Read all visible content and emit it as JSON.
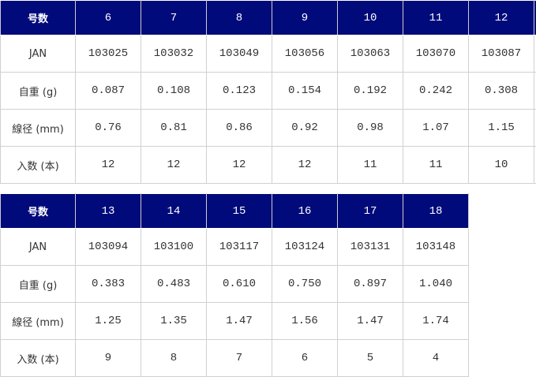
{
  "colors": {
    "header_bg": "#000a7a",
    "header_text": "#ffffff",
    "border": "#d0d0d0"
  },
  "row_labels": {
    "size": "号数",
    "jan": "JAN",
    "weight": "自重 (g)",
    "diameter": "線径 (mm)",
    "quantity": "入数 (本)"
  },
  "tables": [
    {
      "sizes": [
        "6",
        "7",
        "8",
        "9",
        "10",
        "11",
        "12"
      ],
      "jan": [
        "103025",
        "103032",
        "103049",
        "103056",
        "103063",
        "103070",
        "103087"
      ],
      "weight": [
        "0.087",
        "0.108",
        "0.123",
        "0.154",
        "0.192",
        "0.242",
        "0.308"
      ],
      "diameter": [
        "0.76",
        "0.81",
        "0.86",
        "0.92",
        "0.98",
        "1.07",
        "1.15"
      ],
      "quantity": [
        "12",
        "12",
        "12",
        "12",
        "11",
        "11",
        "10"
      ]
    },
    {
      "sizes": [
        "13",
        "14",
        "15",
        "16",
        "17",
        "18"
      ],
      "jan": [
        "103094",
        "103100",
        "103117",
        "103124",
        "103131",
        "103148"
      ],
      "weight": [
        "0.383",
        "0.483",
        "0.610",
        "0.750",
        "0.897",
        "1.040"
      ],
      "diameter": [
        "1.25",
        "1.35",
        "1.47",
        "1.56",
        "1.47",
        "1.74"
      ],
      "quantity": [
        "9",
        "8",
        "7",
        "6",
        "5",
        "4"
      ]
    }
  ]
}
